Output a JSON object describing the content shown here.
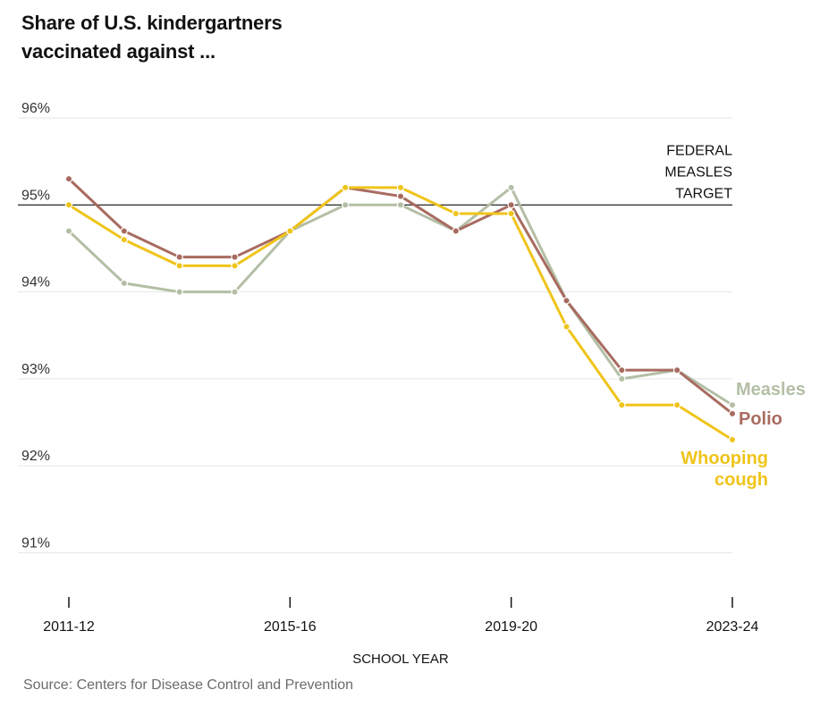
{
  "header": {
    "title_line1": "Share of U.S. kindergartners",
    "title_line2": "vaccinated against ..."
  },
  "footer": {
    "source": "Source: Centers for Disease Control and Prevention"
  },
  "chart_data": {
    "type": "line",
    "title": "Share of U.S. kindergartners vaccinated against ...",
    "xlabel": "SCHOOL YEAR",
    "ylabel": "",
    "x": [
      "2011-12",
      "2012-13",
      "2013-14",
      "2014-15",
      "2015-16",
      "2016-17",
      "2017-18",
      "2018-19",
      "2019-20",
      "2020-21",
      "2021-22",
      "2022-23",
      "2023-24"
    ],
    "x_tick_labels": [
      "2011-12",
      "2015-16",
      "2019-20",
      "2023-24"
    ],
    "ylim": [
      90.5,
      96
    ],
    "y_ticks": [
      91,
      92,
      93,
      94,
      95,
      96
    ],
    "y_tick_labels": [
      "91%",
      "92%",
      "93%",
      "94%",
      "95%",
      "96%"
    ],
    "grid": true,
    "reference_line": {
      "value": 95,
      "label_lines": [
        "FEDERAL",
        "MEASLES",
        "TARGET"
      ]
    },
    "series": [
      {
        "name": "Measles",
        "color": "#b3bfa5",
        "label_lines": [
          "Measles"
        ],
        "values": [
          94.7,
          94.1,
          94.0,
          94.0,
          94.7,
          95.0,
          95.0,
          94.7,
          95.2,
          93.9,
          93.0,
          93.1,
          92.7
        ]
      },
      {
        "name": "Polio",
        "color": "#a86b60",
        "label_lines": [
          "Polio"
        ],
        "values": [
          95.3,
          94.7,
          94.4,
          94.4,
          94.7,
          95.2,
          95.1,
          94.7,
          95.0,
          93.9,
          93.1,
          93.1,
          92.6
        ]
      },
      {
        "name": "Whooping cough",
        "color": "#efc419",
        "label_lines": [
          "Whooping",
          "cough"
        ],
        "values": [
          95.0,
          94.6,
          94.3,
          94.3,
          94.7,
          95.2,
          95.2,
          94.9,
          94.9,
          93.6,
          92.7,
          92.7,
          92.3
        ]
      }
    ]
  }
}
